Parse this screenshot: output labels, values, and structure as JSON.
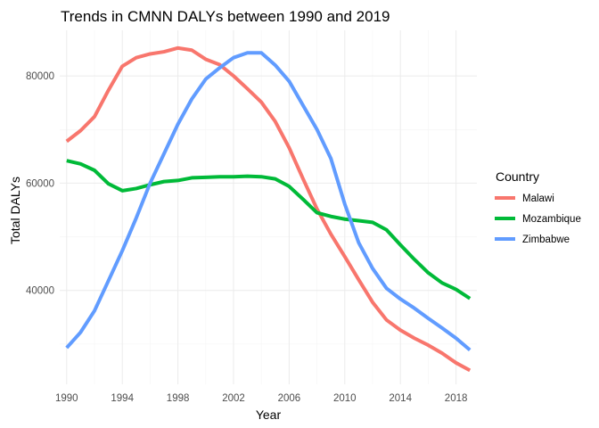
{
  "chart_data": {
    "type": "line",
    "title": "Trends in CMNN DALYs between 1990 and 2019",
    "xlabel": "Year",
    "ylabel": "Total DALYs",
    "xlim": [
      1989.5,
      2019.5
    ],
    "ylim": [
      22500,
      88500
    ],
    "x_ticks": [
      1990,
      1994,
      1998,
      2002,
      2006,
      2010,
      2014,
      2018
    ],
    "y_ticks": [
      40000,
      60000,
      80000
    ],
    "grid": true,
    "legend": {
      "title": "Country",
      "position": "right"
    },
    "x": [
      1990,
      1991,
      1992,
      1993,
      1994,
      1995,
      1996,
      1997,
      1998,
      1999,
      2000,
      2001,
      2002,
      2003,
      2004,
      2005,
      2006,
      2007,
      2008,
      2009,
      2010,
      2011,
      2012,
      2013,
      2014,
      2015,
      2016,
      2017,
      2018,
      2019
    ],
    "series": [
      {
        "name": "Malawi",
        "color": "#F8766D",
        "values": [
          67800,
          69800,
          72400,
          77300,
          81800,
          83400,
          84100,
          84500,
          85200,
          84800,
          83100,
          82100,
          80000,
          77600,
          75100,
          71500,
          66600,
          60800,
          55200,
          50500,
          46300,
          42000,
          37800,
          34500,
          32600,
          31100,
          29800,
          28300,
          26500,
          25100
        ]
      },
      {
        "name": "Mozambique",
        "color": "#00BA38",
        "values": [
          64200,
          63600,
          62400,
          59900,
          58600,
          59000,
          59700,
          60300,
          60500,
          61000,
          61100,
          61200,
          61200,
          61300,
          61200,
          60800,
          59400,
          57000,
          54500,
          53800,
          53300,
          53000,
          52700,
          51300,
          48500,
          45800,
          43300,
          41400,
          40200,
          38500
        ]
      },
      {
        "name": "Zimbabwe",
        "color": "#619CFF",
        "values": [
          29300,
          32200,
          36200,
          41800,
          47400,
          53500,
          60000,
          65500,
          71000,
          75700,
          79400,
          81500,
          83400,
          84300,
          84300,
          82000,
          79000,
          74500,
          70000,
          64600,
          56100,
          48900,
          44100,
          40400,
          38400,
          36700,
          34800,
          33000,
          31100,
          28900
        ]
      }
    ]
  }
}
